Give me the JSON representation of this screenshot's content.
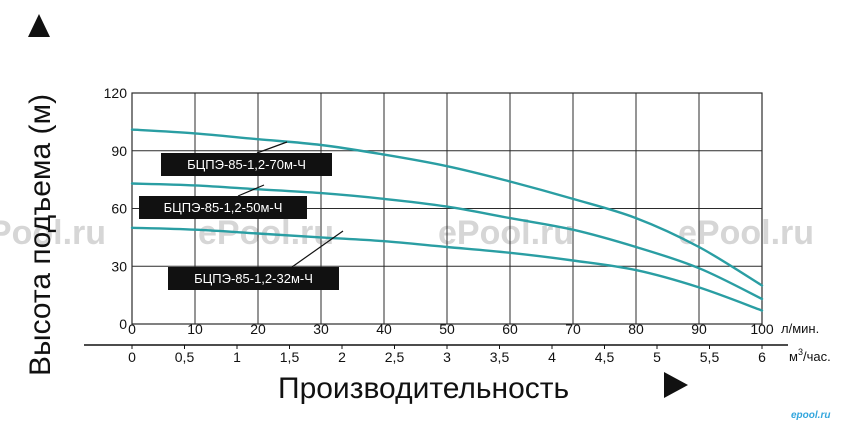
{
  "chart_data": {
    "type": "line",
    "xlabel": "Производительность",
    "ylabel": "Высота подъема (м)",
    "x_unit": "л/мин.",
    "x2_unit_parts": [
      "м",
      "3",
      "/час."
    ],
    "xlim": [
      0,
      100
    ],
    "ylim": [
      0,
      120
    ],
    "grid": true,
    "x_ticks": [
      "0",
      "10",
      "20",
      "30",
      "40",
      "50",
      "60",
      "70",
      "80",
      "90",
      "100"
    ],
    "x2_ticks": [
      "0",
      "0,5",
      "1",
      "1,5",
      "2",
      "2,5",
      "3",
      "3,5",
      "4",
      "4,5",
      "5",
      "5,5",
      "6"
    ],
    "y_ticks": [
      "0",
      "30",
      "60",
      "90",
      "120"
    ],
    "series": [
      {
        "name": "БЦПЭ-85-1,2-70м-Ч",
        "x": [
          0,
          10,
          20,
          30,
          40,
          50,
          60,
          70,
          80,
          90,
          100
        ],
        "values": [
          101,
          99,
          96,
          93,
          88,
          82,
          74,
          65,
          55,
          40,
          20
        ]
      },
      {
        "name": "БЦПЭ-85-1,2-50м-Ч",
        "x": [
          0,
          10,
          20,
          30,
          40,
          50,
          60,
          70,
          80,
          90,
          100
        ],
        "values": [
          73,
          72,
          70,
          68,
          65,
          61,
          55,
          49,
          40,
          29,
          13
        ]
      },
      {
        "name": "БЦПЭ-85-1,2-32м-Ч",
        "x": [
          0,
          10,
          20,
          30,
          40,
          50,
          60,
          70,
          80,
          90,
          100
        ],
        "values": [
          50,
          49,
          47,
          45,
          43,
          40,
          37,
          33,
          28,
          19,
          7
        ]
      }
    ],
    "colors": {
      "line": "#2a9ea3",
      "grid": "#2b2b2b",
      "label_bg": "#111111",
      "text": "#111111"
    },
    "watermark": "ePool.ru",
    "credit": "epool.ru"
  }
}
